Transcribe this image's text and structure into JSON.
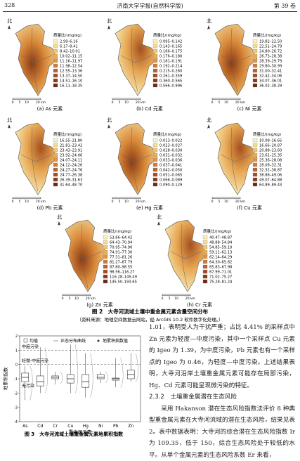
{
  "header": {
    "page": "328",
    "journal": "济南大学学报(自然科学版)",
    "volume": "第 39 卷"
  },
  "figure2": {
    "panels": [
      {
        "caption": "(a) As 元素",
        "north": "北",
        "scale": [
          "0",
          "5",
          "10",
          "20 km"
        ],
        "legend_title": "质量比/(mg/kg)",
        "legend": [
          "2.99–6.16",
          "6.17–8.41",
          "8.42–10.01",
          "10.02–11.15",
          "11.16–11.97",
          "11.98–12.54",
          "12.55–13.36",
          "13.37–14.50",
          "14.51–16.10",
          "16.11–18.35"
        ]
      },
      {
        "caption": "(b) Cd 元素",
        "north": "北",
        "scale": [
          "0",
          "5",
          "10",
          "20 km"
        ],
        "legend_title": "质量比/(mg/kg)",
        "legend": [
          "0.095–0.142",
          "0.143–0.165",
          "0.166–0.175",
          "0.176–0.180",
          "0.181–0.191",
          "0.192–0.214",
          "0.215–0.260",
          "0.261–0.359",
          "0.360–0.565",
          "0.566–0.996"
        ]
      },
      {
        "caption": "(c) Ni 元素",
        "north": "北",
        "scale": [
          "0",
          "5",
          "10",
          "20 km"
        ],
        "legend_title": "质量比/(mg/kg)",
        "legend": [
          "19.82–22.50",
          "22.51–24.79",
          "24.80–26.72",
          "26.73–28.38",
          "28.39–29.79",
          "29.80–30.99",
          "31.00–32.41",
          "32.42–34.06",
          "34.07–36.01",
          "36.02–38.29"
        ]
      },
      {
        "caption": "(d) Pb 元素",
        "north": "北",
        "scale": [
          "0",
          "5",
          "10",
          "20 km"
        ],
        "legend_title": "质量比/(mg/kg)",
        "legend": [
          "16.55–21.80",
          "21.81–23.42",
          "23.43–23.91",
          "23.92–24.06",
          "24.07–24.11",
          "24.12–24.26",
          "24.27–24.76",
          "24.77–26.38",
          "26.39–31.63",
          "31.64–48.70"
        ]
      },
      {
        "caption": "(e) Hg 元素",
        "north": "北",
        "scale": [
          "0",
          "5",
          "10",
          "20 km"
        ],
        "legend_title": "质量比/(mg/kg)",
        "legend": [
          "0.013–0.022",
          "0.023–0.027",
          "0.028–0.030",
          "0.031–0.032",
          "0.033–0.036",
          "0.037–0.041",
          "0.042–0.050",
          "0.051–0.065",
          "0.066–0.089",
          "0.090–0.129"
        ]
      },
      {
        "caption": "(f) Cu 元素",
        "north": "北",
        "scale": [
          "0",
          "5",
          "10",
          "20 km"
        ],
        "legend_title": "质量比/(mg/kg)",
        "legend": [
          "10.08–16.65",
          "16.66–20.87",
          "20.88–23.60",
          "23.61–25.35",
          "25.36–28.08",
          "28.09–32.31",
          "32.32–38.87",
          "38.88–49.06",
          "49.07–64.88",
          "64.89–89.43"
        ]
      },
      {
        "caption": "(g) Zn 元素",
        "north": "北",
        "scale": [
          "0",
          "5",
          "10",
          "20 km"
        ],
        "legend_title": "质量比/(mg/kg)",
        "legend": [
          "53.66–64.42",
          "64.43–70.94",
          "70.95–74.90",
          "74.91–77.30",
          "77.31–81.26",
          "81.27–87.79",
          "87.80–98.55",
          "98.56–116.27",
          "116.28–145.49",
          "145.50–193.65"
        ]
      },
      {
        "caption": "(h) Cr 元素",
        "north": "北",
        "scale": [
          "0",
          "5",
          "10",
          "20 km"
        ],
        "legend_title": "质量比/(mg/kg)",
        "legend": [
          "40.47–48.87",
          "48.88–54.84",
          "54.85–59.10",
          "59.11–62.13",
          "62.14–64.29",
          "64.30–65.82",
          "65.83–67.98",
          "67.99–71.01",
          "71.02–75.27",
          "75.28–81.24"
        ]
      }
    ],
    "caption": "图 2　大寺河流域土壤中重金属元素含量空间分布",
    "source": "（资料来源：地理空间数据云网站，经 ArcGIS 10.2 软件数字化处理。）"
  },
  "chart_data": {
    "type": "box",
    "categories": [
      "As",
      "Cd",
      "Cr",
      "Cu",
      "Hg",
      "Ni",
      "Pb",
      "Zn"
    ],
    "legend": [
      "均值",
      "正态分布曲线",
      "地累积指数值"
    ],
    "xlabel": "重金属元素",
    "ylabel": "地累积指数",
    "ylim": [
      -4,
      2
    ],
    "yticks": [
      -4,
      -3,
      -2,
      -1,
      0,
      1,
      2
    ],
    "levels": [
      {
        "value": 1,
        "label": "中度污染"
      },
      {
        "value": 0,
        "label": "轻微-中度污染"
      }
    ],
    "bottom_label": "无污染",
    "boxes": [
      {
        "min": -2.5,
        "q1": -1.2,
        "median": -0.9,
        "q3": -0.6,
        "max": -0.1
      },
      {
        "min": -2,
        "q1": -1.5,
        "median": -1.2,
        "q3": -0.8,
        "max": 1.2
      },
      {
        "min": -1.4,
        "q1": -1,
        "median": -0.9,
        "q3": -0.8,
        "max": -0.5
      },
      {
        "min": -2,
        "q1": -1.3,
        "median": -1,
        "q3": -0.7,
        "max": 1.39
      },
      {
        "min": -2.3,
        "q1": -1.6,
        "median": -1.2,
        "q3": -0.7,
        "max": 0.8
      },
      {
        "min": -1.3,
        "q1": -1,
        "median": -0.9,
        "q3": -0.7,
        "max": -0.5
      },
      {
        "min": -1.6,
        "q1": -1.1,
        "median": -1,
        "q3": -0.95,
        "max": 0.46
      },
      {
        "min": -1.2,
        "q1": -1,
        "median": -0.7,
        "q3": -0.4,
        "max": 0.8
      }
    ],
    "caption": "图 3　大寺河流域土壤重金属元素地累积指数"
  },
  "body": {
    "p1": "1.01，表明受人为干扰严重；占比 4.41% 的采样点中 Zn 元素为轻度—中度污染，其中一个采样点 Cu 元素的 Igeo 为 1.39，为中度污染，Pb 元素也有一个采样点的 Igeo 为 0.46，为轻度—中度污染。上述结果表明，大寺河沿岸土壤重金属元素可能存在局部污染，Hg、Cd 元素可能呈现微污染的特征。",
    "heading": "2.3.2　土壤重金属潜在生态风险",
    "p2": "采用 Hakanson 潜在生态风险指数法评价 8 种典型重金属元素在大寺河流域的潜在生态风险，结果见表 2。表中数据表明：大寺河的综合潜在生态风险指数 Ir 为 109.35，低于 150，综合生态风险处于较低的水平。从单个金属元素的生态风险系数 Er 来看，"
  }
}
